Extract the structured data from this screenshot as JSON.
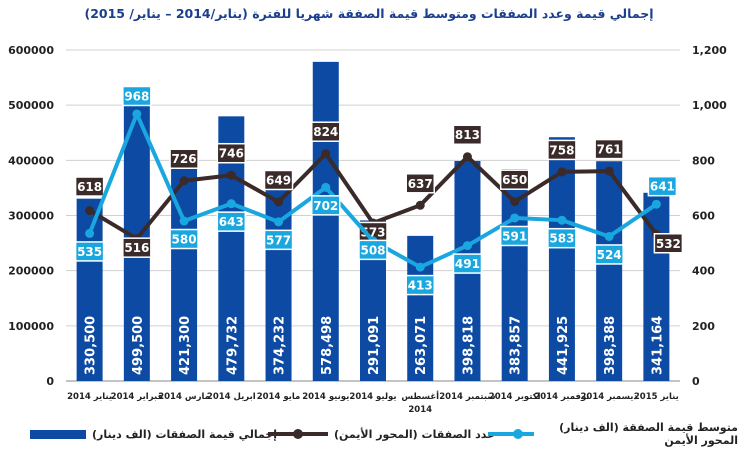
{
  "chart_data": {
    "type": "bar",
    "title": "إجمالي قيمة وعدد الصفقات ومتوسط قيمة الصفقة شهريا للفترة (يناير/2014 – يناير/ 2015)",
    "categories": [
      "يناير 2014",
      "فبراير 2014",
      "مارس 2014",
      "ابريل 2014",
      "مايو 2014",
      "يونيو 2014",
      "يوليو 2014",
      "أغسطس 2014",
      "سبتمبر 2014",
      "اكتوبر 2014",
      "نوفمبر 2014",
      "ديسمبر 2014",
      "يناير 2015"
    ],
    "left_axis": {
      "ticks": [
        "600000",
        "500000",
        "400000",
        "300000",
        "200000",
        "100000",
        "0"
      ],
      "ylim": [
        0,
        600000
      ]
    },
    "right_axis": {
      "ticks": [
        "1,200",
        "1,000",
        "800",
        "600",
        "400",
        "200",
        "0"
      ],
      "ylim": [
        0,
        1200
      ]
    },
    "series": [
      {
        "name": "إجمالي قيمة الصفقات (الف دينار)",
        "type": "bar",
        "axis": "left",
        "color": "#0d4aa3",
        "values": [
          330500,
          499500,
          421300,
          479732,
          374232,
          578498,
          291091,
          263071,
          398818,
          383857,
          441925,
          398388,
          341164
        ],
        "labels": [
          "330,500",
          "499,500",
          "421,300",
          "479,732",
          "374,232",
          "578,498",
          "291,091",
          "263,071",
          "398,818",
          "383,857",
          "441,925",
          "398,388",
          "341,164"
        ]
      },
      {
        "name": "عدد الصفقات (المحور الأيمن)",
        "type": "line",
        "axis": "right",
        "color": "#3a2a2a",
        "values": [
          618,
          516,
          726,
          746,
          649,
          824,
          573,
          637,
          813,
          650,
          758,
          761,
          532
        ]
      },
      {
        "name": "متوسط قيمة الصفقة (الف دينار) المحور الأيمن",
        "type": "line",
        "axis": "right",
        "color": "#1aa7e0",
        "values": [
          535,
          968,
          580,
          643,
          577,
          702,
          508,
          413,
          491,
          591,
          583,
          524,
          641
        ]
      }
    ],
    "grid": true,
    "legend_position": "bottom"
  }
}
